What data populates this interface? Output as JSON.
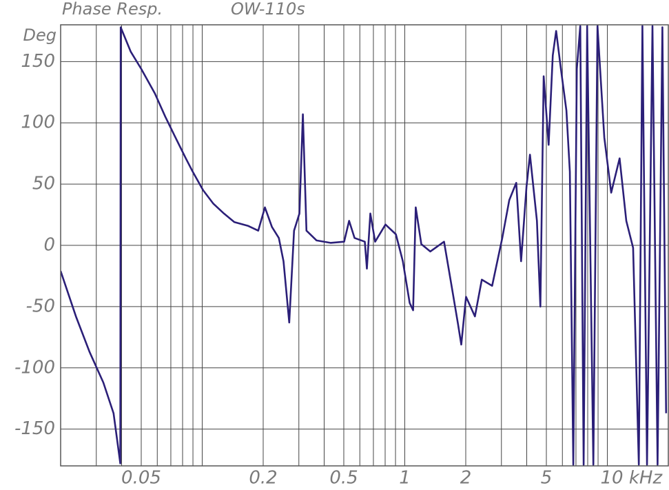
{
  "chart_data": {
    "type": "line",
    "title": "Phase Resp.",
    "subtitle": "OW-110s",
    "ylabel": "Deg",
    "log_x": true,
    "grid": true,
    "color": "#2b1f78",
    "xlim": [
      0.02,
      20
    ],
    "ylim": [
      -180,
      180
    ],
    "xticks": [
      0.05,
      0.2,
      0.5,
      1,
      2,
      5,
      {
        "value": 10,
        "label": "10 kHz"
      }
    ],
    "x_minor_ticks": [
      0.03,
      0.04,
      0.06,
      0.07,
      0.08,
      0.09,
      0.1,
      0.3,
      0.4,
      0.6,
      0.7,
      0.8,
      0.9,
      3,
      4,
      6,
      7,
      8,
      9
    ],
    "yticks": [
      150,
      100,
      50,
      0,
      -50,
      -100,
      -150
    ],
    "x": [
      0.02,
      0.0238,
      0.0278,
      0.0325,
      0.0365,
      0.0394,
      0.0396,
      0.0444,
      0.05,
      0.0584,
      0.0657,
      0.0738,
      0.083,
      0.0898,
      0.101,
      0.1135,
      0.128,
      0.144,
      0.168,
      0.189,
      0.204,
      0.221,
      0.239,
      0.252,
      0.269,
      0.284,
      0.302,
      0.314,
      0.327,
      0.367,
      0.43,
      0.502,
      0.531,
      0.565,
      0.635,
      0.65,
      0.676,
      0.714,
      0.803,
      0.904,
      0.978,
      1.057,
      1.099,
      1.133,
      1.207,
      1.336,
      1.563,
      1.69,
      1.83,
      1.9,
      2.006,
      2.22,
      2.4,
      2.7,
      3.03,
      3.28,
      3.55,
      3.75,
      3.99,
      4.15,
      4.49,
      4.67,
      4.85,
      5.13,
      5.38,
      5.59,
      5.9,
      6.28,
      6.53,
      6.79,
      7.07,
      7.35,
      7.64,
      7.95,
      8.53,
      8.94,
      9.66,
      10.45,
      11.5,
      12.4,
      13.4,
      14.3,
      14.9,
      15.7,
      16.7,
      17.7,
      18.7,
      19.5
    ],
    "series": [
      {
        "name": "Phase",
        "color": "#2b1f78",
        "values": [
          -21,
          -58,
          -87,
          -112,
          -137,
          -178,
          178,
          158,
          144,
          124,
          105,
          88,
          71,
          60,
          45,
          34,
          26,
          19,
          16,
          12,
          31,
          15,
          6,
          -13,
          -63,
          12,
          26,
          107,
          12,
          4,
          2,
          3,
          20,
          6,
          3,
          -19,
          26,
          3,
          17,
          9,
          -13,
          -47,
          -53,
          31,
          1,
          -5,
          3,
          -30,
          -64,
          -81,
          -42,
          -58,
          -28,
          -33,
          6,
          37,
          51,
          -13,
          48,
          74,
          20,
          -50,
          138,
          82,
          155,
          175,
          144,
          110,
          60,
          -179,
          144,
          179,
          -179,
          179,
          -179,
          179,
          88,
          43,
          71,
          20,
          -2,
          -179,
          179,
          -179,
          179,
          -179,
          178,
          -137
        ]
      }
    ]
  }
}
